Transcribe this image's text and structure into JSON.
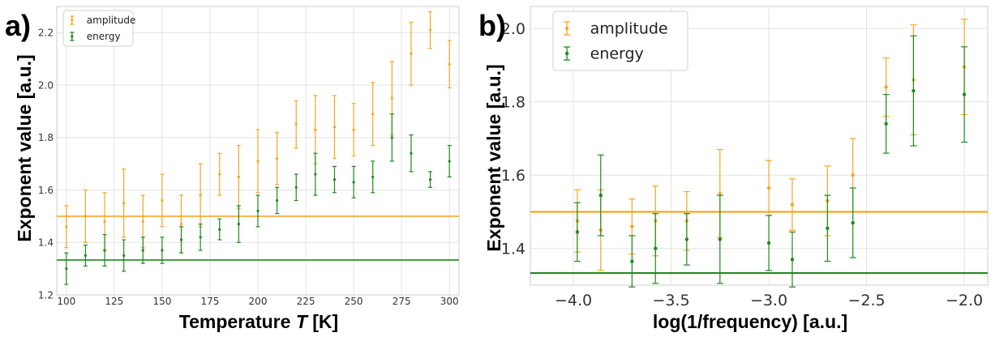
{
  "colors": {
    "amplitude": "#f5a623",
    "energy": "#1f8a1f",
    "grid": "#e3e3e3",
    "spine": "#cccccc"
  },
  "chart_data": [
    {
      "panel": "a)",
      "type": "scatter",
      "xlabel_prefix": "Temperature ",
      "xlabel_var": "T",
      "xlabel_suffix": " [K]",
      "ylabel": "Exponent value [a.u.]",
      "xlim": [
        95,
        305
      ],
      "ylim": [
        1.2,
        2.3
      ],
      "xticks": [
        100,
        125,
        150,
        175,
        200,
        225,
        250,
        275,
        300
      ],
      "yticks": [
        1.2,
        1.4,
        1.6,
        1.8,
        2.0,
        2.2
      ],
      "ytick_labels": [
        "1.2",
        "1.4",
        "1.6",
        "1.8",
        "2.0",
        "2.2"
      ],
      "legend": {
        "placement": "top-left",
        "entries": [
          "amplitude",
          "energy"
        ]
      },
      "series": [
        {
          "name": "amplitude",
          "x": [
            100,
            110,
            120,
            130,
            140,
            150,
            160,
            170,
            180,
            190,
            200,
            210,
            220,
            230,
            240,
            250,
            260,
            270,
            280,
            290,
            300
          ],
          "y": [
            1.46,
            1.5,
            1.48,
            1.55,
            1.48,
            1.56,
            1.47,
            1.58,
            1.66,
            1.65,
            1.71,
            1.72,
            1.85,
            1.83,
            1.84,
            1.83,
            1.89,
            1.95,
            2.12,
            2.21,
            2.08
          ],
          "err": [
            0.08,
            0.1,
            0.11,
            0.13,
            0.1,
            0.1,
            0.11,
            0.12,
            0.08,
            0.12,
            0.12,
            0.1,
            0.09,
            0.13,
            0.12,
            0.1,
            0.12,
            0.14,
            0.12,
            0.07,
            0.09
          ]
        },
        {
          "name": "energy",
          "x": [
            100,
            110,
            120,
            130,
            140,
            150,
            160,
            170,
            180,
            190,
            200,
            210,
            220,
            230,
            240,
            250,
            260,
            270,
            280,
            290,
            300
          ],
          "y": [
            1.3,
            1.35,
            1.37,
            1.35,
            1.37,
            1.37,
            1.41,
            1.42,
            1.45,
            1.47,
            1.52,
            1.56,
            1.61,
            1.66,
            1.64,
            1.63,
            1.65,
            1.8,
            1.74,
            1.64,
            1.71
          ],
          "err": [
            0.06,
            0.04,
            0.06,
            0.06,
            0.05,
            0.05,
            0.05,
            0.05,
            0.04,
            0.07,
            0.06,
            0.05,
            0.05,
            0.08,
            0.05,
            0.06,
            0.06,
            0.09,
            0.07,
            0.03,
            0.06
          ]
        }
      ],
      "hlines": [
        {
          "series": "amplitude",
          "y": 1.5
        },
        {
          "series": "energy",
          "y": 1.333
        }
      ]
    },
    {
      "panel": "b)",
      "type": "scatter",
      "xlabel": "log(1/frequency) [a.u.]",
      "ylabel": "Exponent value [a.u.]",
      "xlim": [
        -4.22,
        -1.88
      ],
      "ylim": [
        1.3,
        2.06
      ],
      "xticks": [
        -4.0,
        -3.5,
        -3.0,
        -2.5,
        -2.0
      ],
      "xtick_labels": [
        "−4.0",
        "−3.5",
        "−3.0",
        "−2.5",
        "−2.0"
      ],
      "yticks": [
        1.4,
        1.6,
        1.8,
        2.0
      ],
      "ytick_labels": [
        "1.4",
        "1.6",
        "1.8",
        "2.0"
      ],
      "legend": {
        "placement": "top-left",
        "entries": [
          "amplitude",
          "energy"
        ]
      },
      "series": [
        {
          "name": "amplitude",
          "x": [
            -3.98,
            -3.86,
            -3.7,
            -3.58,
            -3.42,
            -3.25,
            -3.0,
            -2.88,
            -2.7,
            -2.57,
            -2.4,
            -2.26,
            -2.0
          ],
          "y": [
            1.475,
            1.45,
            1.46,
            1.475,
            1.475,
            1.55,
            1.565,
            1.52,
            1.53,
            1.6,
            1.84,
            1.86,
            1.895
          ],
          "err": [
            0.085,
            0.11,
            0.075,
            0.095,
            0.08,
            0.12,
            0.075,
            0.07,
            0.095,
            0.1,
            0.08,
            0.15,
            0.13
          ]
        },
        {
          "name": "energy",
          "x": [
            -3.98,
            -3.86,
            -3.7,
            -3.58,
            -3.42,
            -3.25,
            -3.0,
            -2.88,
            -2.7,
            -2.57,
            -2.4,
            -2.26,
            -2.0
          ],
          "y": [
            1.445,
            1.545,
            1.365,
            1.4,
            1.425,
            1.425,
            1.415,
            1.37,
            1.455,
            1.47,
            1.74,
            1.83,
            1.82
          ],
          "err": [
            0.08,
            0.11,
            0.07,
            0.095,
            0.07,
            0.12,
            0.075,
            0.075,
            0.09,
            0.095,
            0.08,
            0.15,
            0.13
          ]
        }
      ],
      "hlines": [
        {
          "series": "amplitude",
          "y": 1.5
        },
        {
          "series": "energy",
          "y": 1.333
        }
      ]
    }
  ]
}
